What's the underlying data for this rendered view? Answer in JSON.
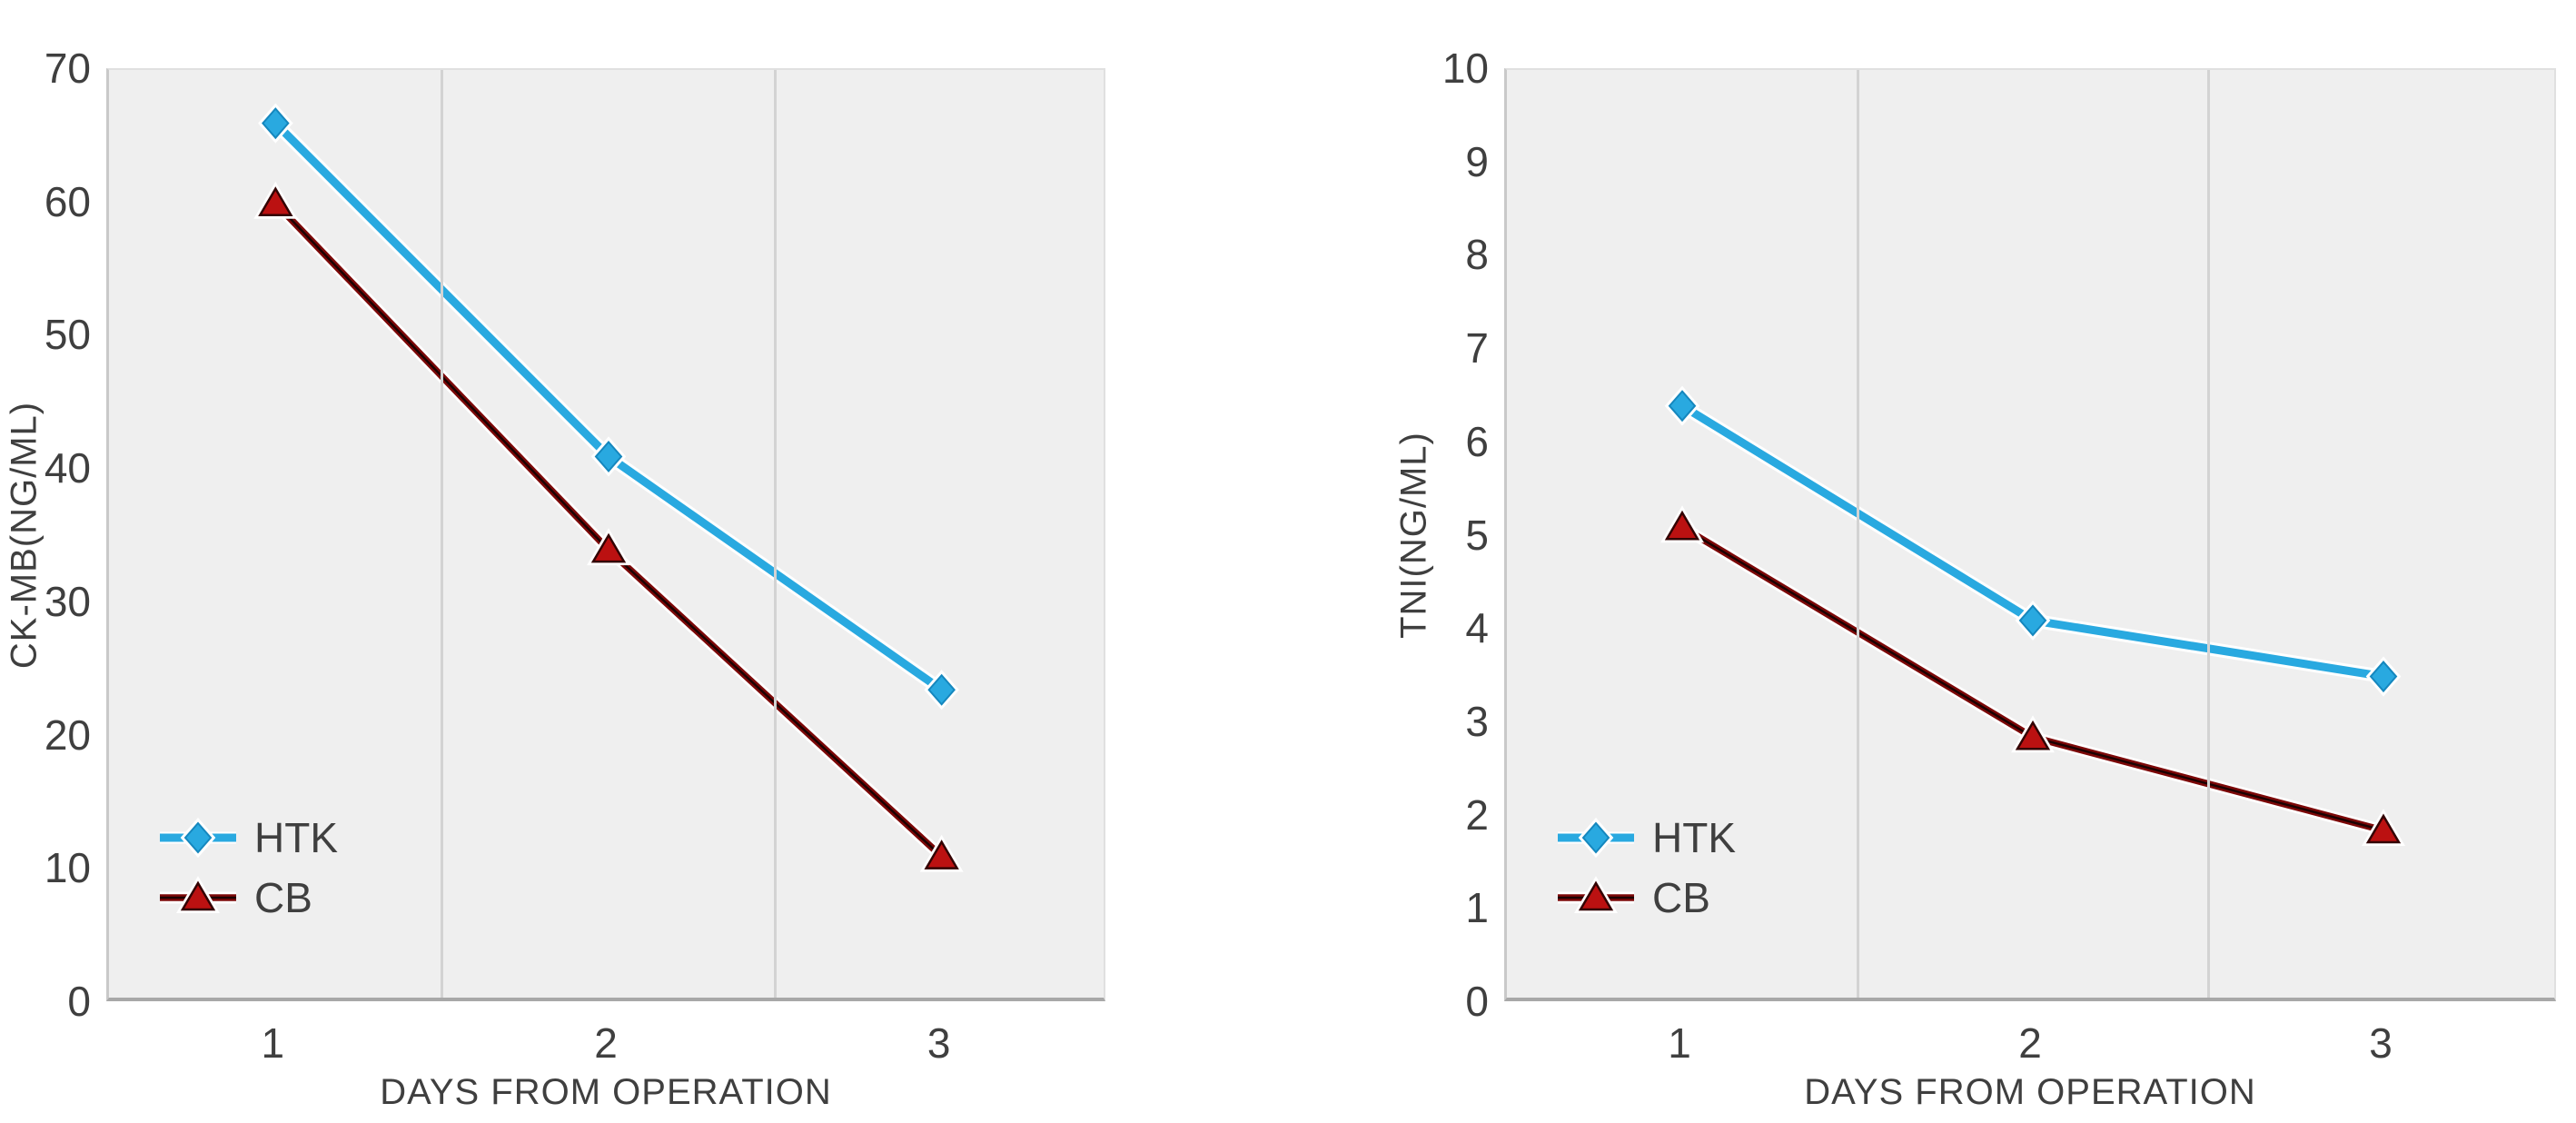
{
  "styles": {
    "text_color": "#3f3f3f",
    "plot_bg": "#efefef",
    "grid_color": "#d3d3d3",
    "axis_line_color": "#a8a8a8",
    "halo_color": "#ffffff",
    "htk_blue": "#29a9e0",
    "cb_dark_red": "#7c0808",
    "cb_marker_red": "#bb1111"
  },
  "chart_data": [
    {
      "type": "line",
      "title": "",
      "ylabel": "CK-MB(NG/ML)",
      "xlabel": "DAYS FROM OPERATION",
      "categories": [
        "1",
        "2",
        "3"
      ],
      "ylim": [
        0,
        70
      ],
      "ytick_step": 10,
      "yticks": [
        0,
        10,
        20,
        30,
        40,
        50,
        60,
        70
      ],
      "grid": "vertical-only",
      "legend_position": "inside-bottom-left",
      "series": [
        {
          "name": "HTK",
          "values": [
            66,
            41,
            23.5
          ],
          "color": "#29a9e0",
          "marker": "diamond"
        },
        {
          "name": "CB",
          "values": [
            60,
            34,
            11
          ],
          "color": "#7c0808",
          "marker_fill": "#bb1111",
          "marker": "triangle"
        }
      ]
    },
    {
      "type": "line",
      "title": "",
      "ylabel": "TNI(NG/ML)",
      "xlabel": "DAYS FROM OPERATION",
      "categories": [
        "1",
        "2",
        "3"
      ],
      "ylim": [
        0,
        10
      ],
      "ytick_step": 1,
      "yticks": [
        0,
        1,
        2,
        3,
        4,
        5,
        6,
        7,
        8,
        9,
        10
      ],
      "grid": "vertical-only",
      "legend_position": "inside-bottom-left",
      "series": [
        {
          "name": "HTK",
          "values": [
            6.4,
            4.1,
            3.5
          ],
          "color": "#29a9e0",
          "marker": "diamond"
        },
        {
          "name": "CB",
          "values": [
            5.1,
            2.85,
            1.85
          ],
          "color": "#7c0808",
          "marker_fill": "#bb1111",
          "marker": "triangle"
        }
      ]
    }
  ]
}
